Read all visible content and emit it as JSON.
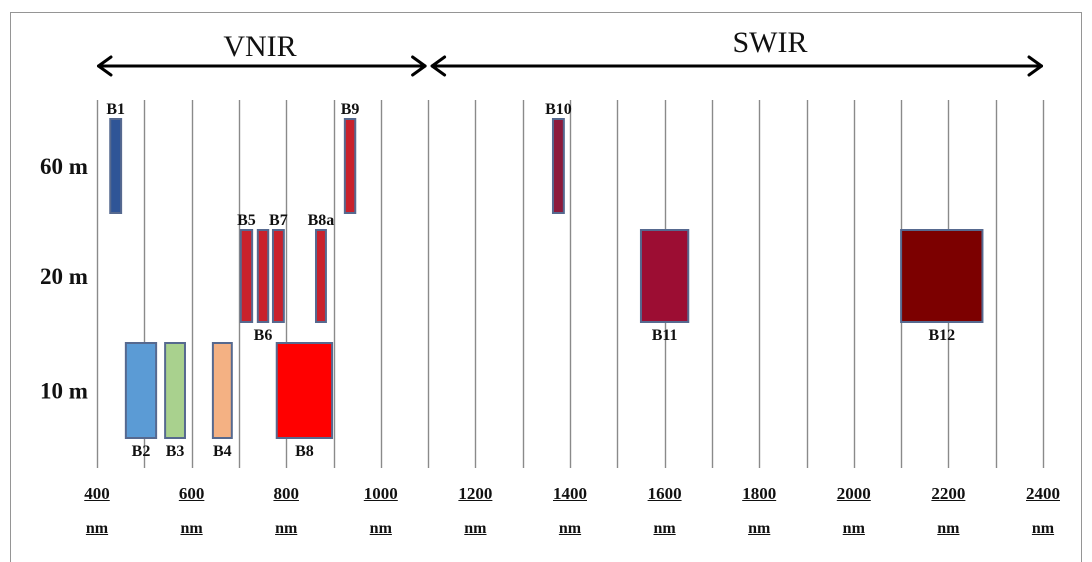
{
  "ranges": [
    {
      "label": "VNIR",
      "start_nm": 400,
      "end_nm": 1100
    },
    {
      "label": "SWIR",
      "start_nm": 1100,
      "end_nm": 2400
    }
  ],
  "axis": {
    "min_nm": 400,
    "max_nm": 2400,
    "grid_step_nm": 100,
    "tick_labels": [
      "400",
      "600",
      "800",
      "1000",
      "1200",
      "1400",
      "1600",
      "1800",
      "2000",
      "2200",
      "2400"
    ],
    "unit": "nm"
  },
  "rows": [
    {
      "label": "60 m",
      "bands": [
        {
          "name": "B1",
          "start_nm": 428,
          "end_nm": 451,
          "color": "#2f5597"
        },
        {
          "name": "B9",
          "start_nm": 924,
          "end_nm": 946,
          "color": "#c9212c"
        },
        {
          "name": "B10",
          "start_nm": 1364,
          "end_nm": 1387,
          "color": "#8d1a3c"
        }
      ]
    },
    {
      "label": "20 m",
      "bands": [
        {
          "name": "B5",
          "start_nm": 704,
          "end_nm": 728,
          "color": "#c9212c"
        },
        {
          "name": "B6",
          "start_nm": 740,
          "end_nm": 762,
          "color": "#c9212c"
        },
        {
          "name": "B7",
          "start_nm": 772,
          "end_nm": 795,
          "color": "#c9212c"
        },
        {
          "name": "B8a",
          "start_nm": 863,
          "end_nm": 884,
          "color": "#c9212c"
        },
        {
          "name": "B11",
          "start_nm": 1550,
          "end_nm": 1650,
          "color": "#9c0d33"
        },
        {
          "name": "B12",
          "start_nm": 2100,
          "end_nm": 2272,
          "color": "#7c0000"
        }
      ]
    },
    {
      "label": "10 m",
      "bands": [
        {
          "name": "B2",
          "start_nm": 461,
          "end_nm": 525,
          "color": "#5b9bd5"
        },
        {
          "name": "B3",
          "start_nm": 544,
          "end_nm": 586,
          "color": "#a9d18e"
        },
        {
          "name": "B4",
          "start_nm": 645,
          "end_nm": 685,
          "color": "#f4b183"
        },
        {
          "name": "B8",
          "start_nm": 780,
          "end_nm": 897,
          "color": "#ff0000"
        }
      ]
    }
  ]
}
